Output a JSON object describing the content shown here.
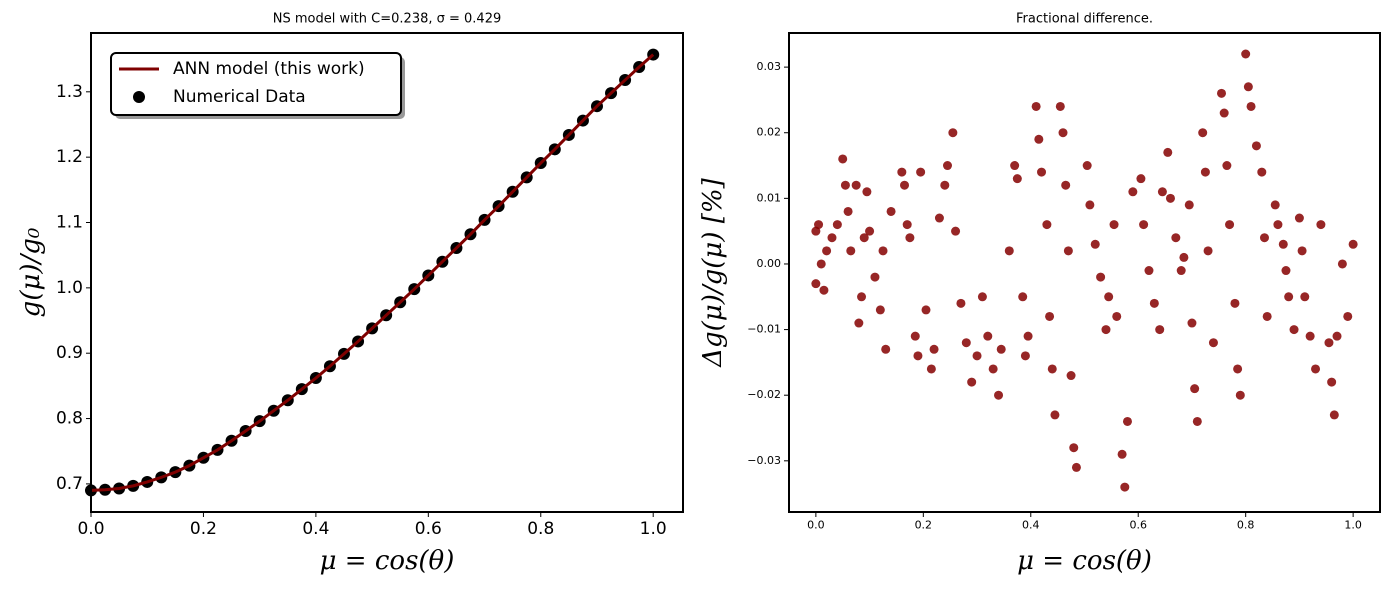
{
  "chart_data": [
    {
      "type": "line",
      "title": "NS model with C=0.238, σ = 0.429",
      "xlabel": "μ = cos(θ)",
      "ylabel": "g(μ)/g₀",
      "x": [
        0,
        0.025,
        0.05,
        0.075,
        0.1,
        0.125,
        0.15,
        0.175,
        0.2,
        0.225,
        0.25,
        0.275,
        0.3,
        0.325,
        0.35,
        0.375,
        0.4,
        0.425,
        0.45,
        0.475,
        0.5,
        0.525,
        0.55,
        0.575,
        0.6,
        0.625,
        0.65,
        0.675,
        0.7,
        0.725,
        0.75,
        0.775,
        0.8,
        0.825,
        0.85,
        0.875,
        0.9,
        0.925,
        0.95,
        0.975,
        1.0
      ],
      "series": [
        {
          "name": "ANN model (this work)",
          "type": "line",
          "color": "#7f0000",
          "values": [
            0.69,
            0.691,
            0.693,
            0.697,
            0.703,
            0.71,
            0.718,
            0.728,
            0.74,
            0.752,
            0.766,
            0.781,
            0.796,
            0.812,
            0.828,
            0.845,
            0.862,
            0.88,
            0.899,
            0.918,
            0.938,
            0.958,
            0.978,
            0.998,
            1.019,
            1.04,
            1.061,
            1.082,
            1.104,
            1.125,
            1.147,
            1.169,
            1.191,
            1.212,
            1.234,
            1.256,
            1.278,
            1.298,
            1.318,
            1.338,
            1.357
          ]
        },
        {
          "name": "Numerical Data",
          "type": "scatter",
          "color": "#000000",
          "values": [
            0.69,
            0.691,
            0.693,
            0.697,
            0.703,
            0.71,
            0.718,
            0.728,
            0.74,
            0.752,
            0.766,
            0.781,
            0.796,
            0.812,
            0.828,
            0.845,
            0.862,
            0.88,
            0.899,
            0.918,
            0.938,
            0.958,
            0.978,
            0.998,
            1.019,
            1.04,
            1.061,
            1.082,
            1.104,
            1.125,
            1.147,
            1.169,
            1.191,
            1.212,
            1.234,
            1.256,
            1.278,
            1.298,
            1.318,
            1.338,
            1.357
          ]
        }
      ],
      "xlim": [
        0,
        1.053
      ],
      "ylim": [
        0.657,
        1.39
      ],
      "xticks": [
        {
          "value": 0,
          "label": "0.0"
        },
        {
          "value": 0.2,
          "label": "0.2"
        },
        {
          "value": 0.4,
          "label": "0.4"
        },
        {
          "value": 0.6,
          "label": "0.6"
        },
        {
          "value": 0.8,
          "label": "0.8"
        },
        {
          "value": 1,
          "label": "1.0"
        }
      ],
      "yticks": [
        {
          "value": 0.7,
          "label": "0.7"
        },
        {
          "value": 0.8,
          "label": "0.8"
        },
        {
          "value": 0.9,
          "label": "0.9"
        },
        {
          "value": 1.0,
          "label": "1.0"
        },
        {
          "value": 1.1,
          "label": "1.1"
        },
        {
          "value": 1.2,
          "label": "1.2"
        },
        {
          "value": 1.3,
          "label": "1.3"
        }
      ],
      "legend": "upper left",
      "grid": false
    },
    {
      "type": "scatter",
      "title": "Fractional difference.",
      "xlabel": "μ = cos(θ)",
      "ylabel": "Δg(μ)/g(μ)  [%]",
      "x": [
        0,
        0,
        0.005,
        0.01,
        0.015,
        0.02,
        0.03,
        0.04,
        0.05,
        0.055,
        0.06,
        0.065,
        0.075,
        0.08,
        0.085,
        0.09,
        0.095,
        0.1,
        0.11,
        0.12,
        0.125,
        0.13,
        0.14,
        0.16,
        0.165,
        0.17,
        0.175,
        0.185,
        0.19,
        0.195,
        0.205,
        0.215,
        0.22,
        0.23,
        0.24,
        0.245,
        0.255,
        0.26,
        0.27,
        0.28,
        0.29,
        0.3,
        0.31,
        0.32,
        0.33,
        0.34,
        0.345,
        0.36,
        0.37,
        0.375,
        0.385,
        0.39,
        0.395,
        0.41,
        0.415,
        0.42,
        0.43,
        0.435,
        0.44,
        0.445,
        0.455,
        0.46,
        0.465,
        0.47,
        0.475,
        0.48,
        0.485,
        0.505,
        0.51,
        0.52,
        0.53,
        0.54,
        0.545,
        0.555,
        0.56,
        0.57,
        0.575,
        0.58,
        0.59,
        0.605,
        0.61,
        0.62,
        0.63,
        0.64,
        0.645,
        0.655,
        0.66,
        0.67,
        0.68,
        0.685,
        0.695,
        0.7,
        0.705,
        0.71,
        0.72,
        0.725,
        0.73,
        0.74,
        0.755,
        0.76,
        0.765,
        0.77,
        0.78,
        0.785,
        0.79,
        0.8,
        0.805,
        0.81,
        0.82,
        0.83,
        0.835,
        0.84,
        0.855,
        0.86,
        0.87,
        0.875,
        0.88,
        0.89,
        0.9,
        0.905,
        0.91,
        0.92,
        0.93,
        0.94,
        0.955,
        0.96,
        0.965,
        0.97,
        0.98,
        0.99,
        1.0
      ],
      "series": [
        {
          "type": "scatter",
          "color": "#850000",
          "values": [
            0.005,
            -0.003,
            0.006,
            0,
            -0.004,
            0.002,
            0.004,
            0.006,
            0.016,
            0.012,
            0.008,
            0.002,
            0.012,
            -0.009,
            -0.005,
            0.004,
            0.011,
            0.005,
            -0.002,
            -0.007,
            0.002,
            -0.013,
            0.008,
            0.014,
            0.012,
            0.006,
            0.004,
            -0.011,
            -0.014,
            0.014,
            -0.007,
            -0.016,
            -0.013,
            0.007,
            0.012,
            0.015,
            0.02,
            0.005,
            -0.006,
            -0.012,
            -0.018,
            -0.014,
            -0.005,
            -0.011,
            -0.016,
            -0.02,
            -0.013,
            0.002,
            0.015,
            0.013,
            -0.005,
            -0.014,
            -0.011,
            0.024,
            0.019,
            0.014,
            0.006,
            -0.008,
            -0.016,
            -0.023,
            0.024,
            0.02,
            0.012,
            0.002,
            -0.017,
            -0.028,
            -0.031,
            0.015,
            0.009,
            0.003,
            -0.002,
            -0.01,
            -0.005,
            0.006,
            -0.008,
            -0.029,
            -0.034,
            -0.024,
            0.011,
            0.013,
            0.006,
            -0.001,
            -0.006,
            -0.01,
            0.011,
            0.017,
            0.01,
            0.004,
            -0.001,
            0.001,
            0.009,
            -0.009,
            -0.019,
            -0.024,
            0.02,
            0.014,
            0.002,
            -0.012,
            0.026,
            0.023,
            0.015,
            0.006,
            -0.006,
            -0.016,
            -0.02,
            0.032,
            0.027,
            0.024,
            0.018,
            0.014,
            0.004,
            -0.008,
            0.009,
            0.006,
            0.003,
            -0.001,
            -0.005,
            -0.01,
            0.007,
            0.002,
            -0.005,
            -0.011,
            -0.016,
            0.006,
            -0.012,
            -0.018,
            -0.023,
            -0.011,
            0.0,
            -0.008,
            0.003
          ]
        }
      ],
      "xlim": [
        -0.05,
        1.05
      ],
      "ylim": [
        -0.0378,
        0.0352
      ],
      "xticks": [
        {
          "value": 0,
          "label": "0.0"
        },
        {
          "value": 0.2,
          "label": "0.2"
        },
        {
          "value": 0.4,
          "label": "0.4"
        },
        {
          "value": 0.6,
          "label": "0.6"
        },
        {
          "value": 0.8,
          "label": "0.8"
        },
        {
          "value": 1,
          "label": "1.0"
        }
      ],
      "yticks": [
        {
          "value": -0.03,
          "label": "−0.03"
        },
        {
          "value": -0.02,
          "label": "−0.02"
        },
        {
          "value": -0.01,
          "label": "−0.01"
        },
        {
          "value": 0,
          "label": "0.00"
        },
        {
          "value": 0.01,
          "label": "0.01"
        },
        {
          "value": 0.02,
          "label": "0.02"
        },
        {
          "value": 0.03,
          "label": "0.03"
        }
      ],
      "grid": false
    }
  ]
}
